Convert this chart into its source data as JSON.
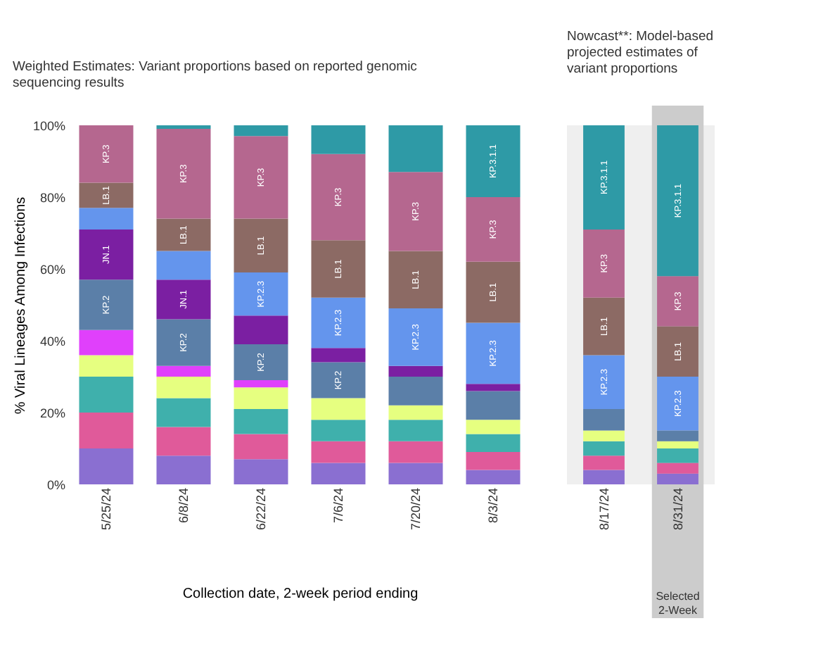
{
  "chart_data": [
    {
      "type": "bar",
      "stacked": true,
      "title": "Weighted Estimates: Variant proportions based on reported genomic sequencing results",
      "xlabel": "Collection date, 2-week period ending",
      "ylabel": "% Viral Lineages Among Infections",
      "categories": [
        "5/25/24",
        "6/8/24",
        "6/22/24",
        "7/6/24",
        "7/20/24",
        "8/3/24"
      ],
      "ylim": [
        0,
        100
      ],
      "yticks": [
        {
          "value": 0,
          "label": "0%"
        },
        {
          "value": 20,
          "label": "20%"
        },
        {
          "value": 40,
          "label": "40%"
        },
        {
          "value": 60,
          "label": "60%"
        },
        {
          "value": 80,
          "label": "80%"
        },
        {
          "value": 100,
          "label": "100%"
        }
      ],
      "grid": false,
      "legend": false,
      "series": [
        {
          "color": "#8a6fd1",
          "values": [
            10,
            8,
            7,
            6,
            6,
            4
          ]
        },
        {
          "color": "#e05a9a",
          "values": [
            10,
            8,
            7,
            6,
            6,
            5
          ]
        },
        {
          "color": "#3fb0ac",
          "values": [
            10,
            8,
            7,
            6,
            6,
            5
          ]
        },
        {
          "color": "#e6ff80",
          "values": [
            6,
            6,
            6,
            6,
            4,
            4
          ]
        },
        {
          "color": "#e040fb",
          "values": [
            7,
            3,
            2,
            0,
            0,
            0
          ]
        },
        {
          "color": "#5b7fa8",
          "values": [
            14,
            13,
            10,
            10,
            8,
            8
          ],
          "value_labels": [
            "KP.2",
            "KP.2",
            "KP.2",
            "KP.2",
            null,
            null
          ]
        },
        {
          "color": "#7b1fa2",
          "values": [
            14,
            11,
            8,
            4,
            3,
            2
          ],
          "value_labels": [
            "JN.1",
            "JN.1",
            null,
            null,
            null,
            null
          ]
        },
        {
          "color": "#6495ed",
          "values": [
            6,
            8,
            12,
            14,
            16,
            17
          ],
          "value_labels": [
            null,
            null,
            "KP.2.3",
            "KP.2.3",
            "KP.2.3",
            "KP.2.3"
          ]
        },
        {
          "color": "#8c6a64",
          "values": [
            7,
            9,
            15,
            16,
            16,
            17
          ],
          "value_labels": [
            "LB.1",
            "LB.1",
            "LB.1",
            "LB.1",
            "LB.1",
            "LB.1"
          ]
        },
        {
          "color": "#b5678f",
          "values": [
            16,
            25,
            23,
            24,
            22,
            18
          ],
          "value_labels": [
            "KP.3",
            "KP.3",
            "KP.3",
            "KP.3",
            "KP.3",
            "KP.3"
          ]
        },
        {
          "color": "#2e9aa6",
          "values": [
            0,
            1,
            3,
            8,
            13,
            20
          ],
          "value_labels": [
            null,
            null,
            null,
            null,
            null,
            "KP.3.1.1"
          ]
        }
      ]
    },
    {
      "type": "bar",
      "stacked": true,
      "title": "Nowcast**: Model-based projected estimates of variant proportions",
      "categories": [
        "8/17/24",
        "8/31/24"
      ],
      "ylim": [
        0,
        100
      ],
      "grid": false,
      "legend": false,
      "bands": [
        {
          "axis": "x",
          "from": "8/31/24",
          "to": "8/31/24",
          "label": "Selected 2-Week",
          "color": "#cccccc"
        }
      ],
      "series": [
        {
          "color": "#8a6fd1",
          "values": [
            4,
            3
          ]
        },
        {
          "color": "#e05a9a",
          "values": [
            4,
            3
          ]
        },
        {
          "color": "#3fb0ac",
          "values": [
            4,
            4
          ]
        },
        {
          "color": "#e6ff80",
          "values": [
            3,
            2
          ]
        },
        {
          "color": "#5b7fa8",
          "values": [
            6,
            3
          ]
        },
        {
          "color": "#6495ed",
          "values": [
            15,
            15
          ],
          "value_labels": [
            "KP.2.3",
            "KP.2.3"
          ]
        },
        {
          "color": "#8c6a64",
          "values": [
            16,
            14
          ],
          "value_labels": [
            "LB.1",
            "LB.1"
          ]
        },
        {
          "color": "#b5678f",
          "values": [
            19,
            14
          ],
          "value_labels": [
            "KP.3",
            "KP.3"
          ]
        },
        {
          "color": "#2e9aa6",
          "values": [
            29,
            42
          ],
          "value_labels": [
            "KP.3.1.1",
            "KP.3.1.1"
          ]
        }
      ]
    }
  ]
}
